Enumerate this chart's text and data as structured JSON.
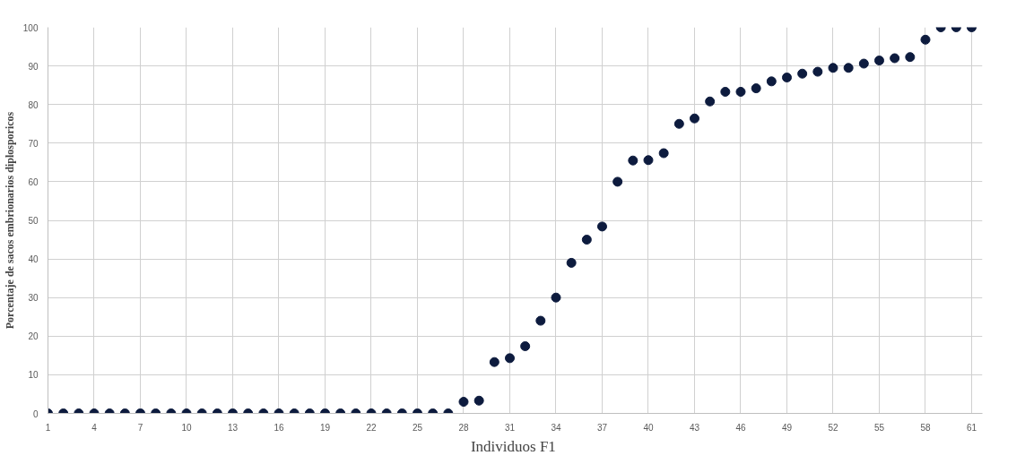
{
  "chart_data": {
    "type": "scatter",
    "xlabel": "Individuos  F1",
    "ylabel": "Porcentaje de sacos embrionarios diplosporicos",
    "x": [
      1,
      2,
      3,
      4,
      5,
      6,
      7,
      8,
      9,
      10,
      11,
      12,
      13,
      14,
      15,
      16,
      17,
      18,
      19,
      20,
      21,
      22,
      23,
      24,
      25,
      26,
      27,
      28,
      29,
      30,
      31,
      32,
      33,
      34,
      35,
      36,
      37,
      38,
      39,
      40,
      41,
      42,
      43,
      44,
      45,
      46,
      47,
      48,
      49,
      50,
      51,
      52,
      53,
      54,
      55,
      56,
      57,
      58,
      59,
      60,
      61
    ],
    "series": [
      {
        "color": "#0d1b3e",
        "values": [
          0,
          0,
          0,
          0,
          0,
          0,
          0,
          0,
          0,
          0,
          0,
          0,
          0,
          0,
          0,
          0,
          0,
          0,
          0,
          0,
          0,
          0,
          0,
          0,
          0,
          0,
          0,
          3,
          3.3,
          13.3,
          14.3,
          17.4,
          24,
          30,
          39,
          45,
          48.4,
          60,
          65.5,
          65.6,
          67.4,
          75,
          76.4,
          80.8,
          83.3,
          83.3,
          84.2,
          86,
          87,
          88,
          88.5,
          89.5,
          89.5,
          90.6,
          91.4,
          92,
          92.3,
          96.8,
          100,
          100,
          100
        ]
      }
    ],
    "xlim": [
      1,
      61.7
    ],
    "xticks": [
      1,
      4,
      7,
      10,
      13,
      16,
      19,
      22,
      25,
      28,
      31,
      34,
      37,
      40,
      43,
      46,
      49,
      52,
      55,
      58,
      61
    ],
    "ylim": [
      0,
      100
    ],
    "yticks": [
      0,
      10,
      20,
      30,
      40,
      50,
      60,
      70,
      80,
      90,
      100
    ],
    "grid": true,
    "marker": "circle"
  }
}
